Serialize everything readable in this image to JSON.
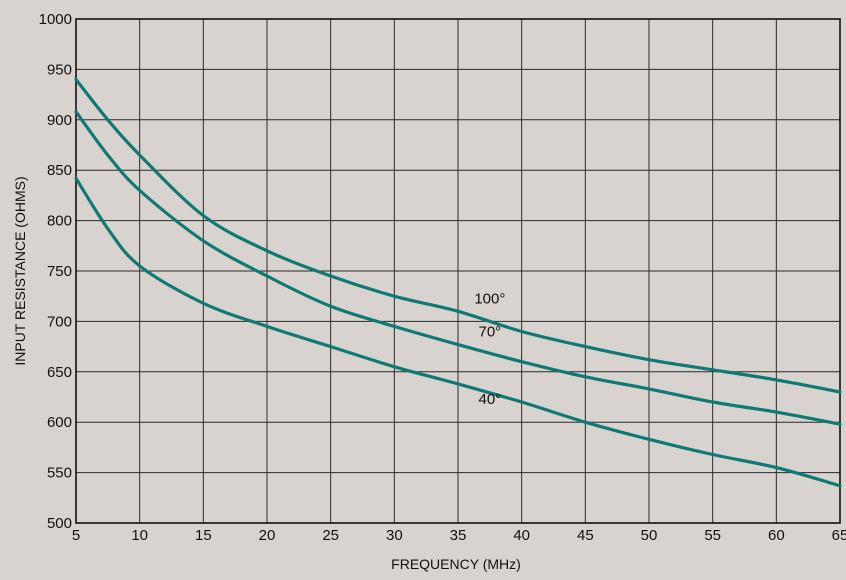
{
  "chart_data": {
    "type": "line",
    "title": "",
    "xlabel": "FREQUENCY (MHz)",
    "ylabel": "INPUT RESISTANCE (OHMS)",
    "xlim": [
      5,
      65
    ],
    "ylim": [
      500,
      1000
    ],
    "x_ticks": [
      5,
      10,
      15,
      20,
      25,
      30,
      35,
      40,
      45,
      50,
      55,
      60,
      65
    ],
    "y_ticks": [
      500,
      550,
      600,
      650,
      700,
      750,
      800,
      850,
      900,
      950,
      1000
    ],
    "grid": true,
    "line_color": "#0e7a73",
    "background_color": "#d9d3cf",
    "grid_color": "#2a2a2a",
    "series": [
      {
        "name": "100°",
        "x": [
          5,
          7.5,
          10,
          15,
          20,
          25,
          30,
          35,
          40,
          45,
          50,
          55,
          60,
          65
        ],
        "y": [
          940,
          900,
          865,
          805,
          770,
          745,
          725,
          710,
          690,
          675,
          662,
          652,
          642,
          630
        ]
      },
      {
        "name": "70°",
        "x": [
          5,
          7.5,
          10,
          15,
          20,
          25,
          30,
          35,
          40,
          45,
          50,
          55,
          60,
          65
        ],
        "y": [
          908,
          865,
          830,
          780,
          745,
          715,
          695,
          677,
          660,
          645,
          633,
          620,
          610,
          598
        ]
      },
      {
        "name": "40°",
        "x": [
          5,
          7.5,
          10,
          15,
          20,
          25,
          30,
          35,
          40,
          45,
          50,
          55,
          60,
          65
        ],
        "y": [
          842,
          792,
          755,
          718,
          695,
          675,
          655,
          638,
          620,
          600,
          583,
          568,
          555,
          537
        ]
      }
    ],
    "series_label_positions": [
      {
        "name": "100°",
        "x": 37.5,
        "y": 718
      },
      {
        "name": "70°",
        "x": 37.5,
        "y": 685
      },
      {
        "name": "40°",
        "x": 37.5,
        "y": 618
      }
    ]
  }
}
